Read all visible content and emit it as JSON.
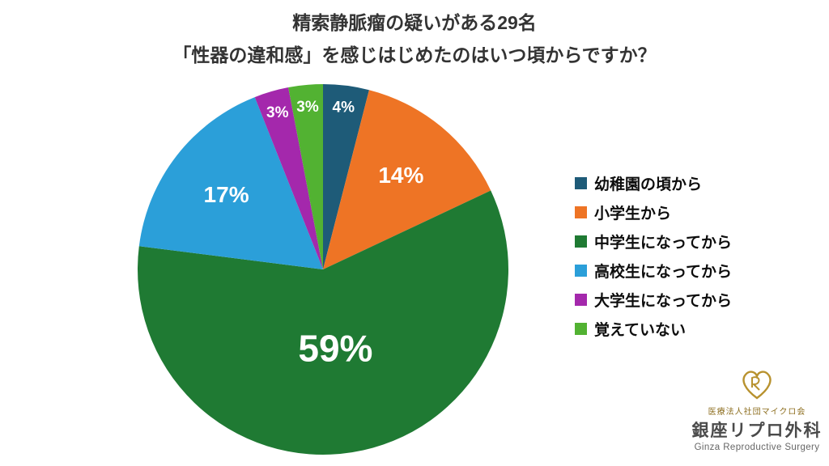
{
  "title": {
    "line1": "精索静脈瘤の疑いがある29名",
    "line2": "「性器の違和感」を感じはじめたのはいつ頃からですか？"
  },
  "chart_data": {
    "type": "pie",
    "title": "精索静脈瘤の疑いがある29名 「性器の違和感」を感じはじめたのはいつ頃からですか？",
    "sample_size": "29名",
    "labels": [
      "幼稚園の頃から",
      "小学生から",
      "中学生になってから",
      "高校生になってから",
      "大学生になってから",
      "覚えていない"
    ],
    "values": [
      4,
      14,
      59,
      17,
      3,
      3
    ],
    "unit": "%",
    "data_labels": [
      "4%",
      "14%",
      "59%",
      "17%",
      "3%",
      "3%"
    ],
    "colors": [
      "#1e5b78",
      "#ee7425",
      "#1f7a33",
      "#2b9fd9",
      "#a428ac",
      "#52b232"
    ],
    "start_angle_deg": -90,
    "direction": "clockwise",
    "legend_position": "right",
    "label_color": "#ffffff"
  },
  "logo": {
    "line1": "医療法人社団マイクロ会",
    "line2": "銀座リプロ外科",
    "line3": "Ginza Reproductive Surgery",
    "accent_color": "#b8922f"
  }
}
